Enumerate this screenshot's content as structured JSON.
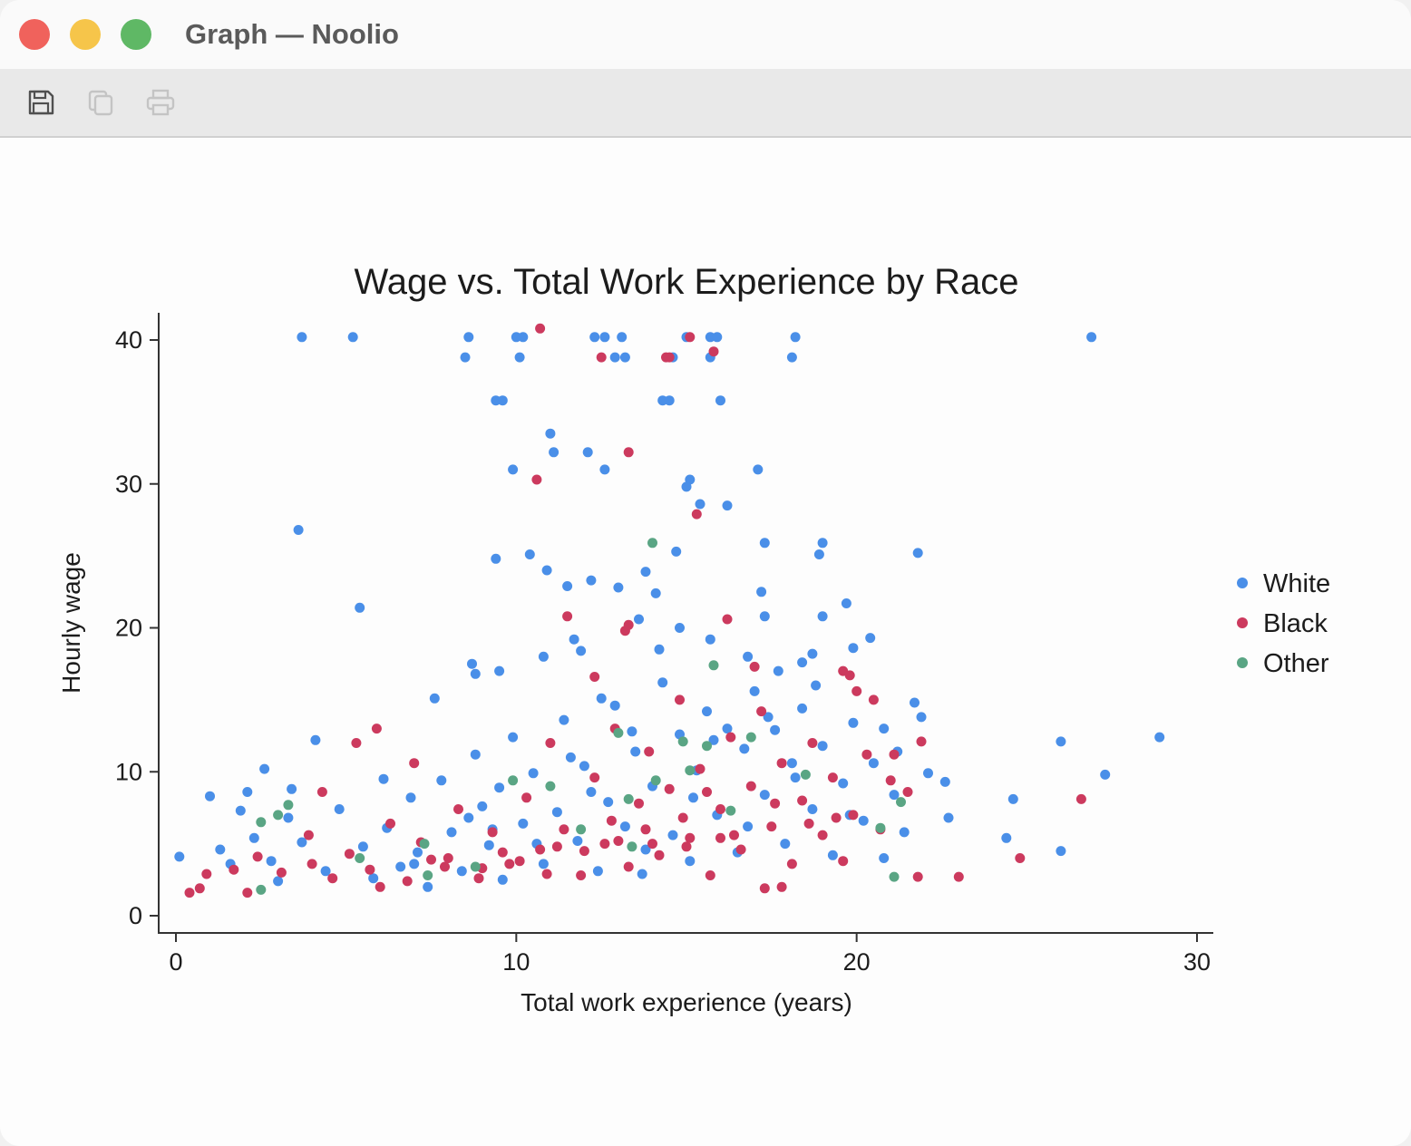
{
  "window": {
    "title": "Graph — Noolio",
    "toolbar": [
      {
        "icon": "save-icon",
        "enabled": true
      },
      {
        "icon": "copy-icon",
        "enabled": false
      },
      {
        "icon": "print-icon",
        "enabled": false
      }
    ]
  },
  "chart_data": {
    "type": "scatter",
    "title": "Wage vs. Total Work Experience by Race",
    "xlabel": "Total work experience (years)",
    "ylabel": "Hourly wage",
    "xlim": [
      0,
      30
    ],
    "ylim": [
      0,
      40
    ],
    "x_ticks": [
      0,
      10,
      20,
      30
    ],
    "y_ticks": [
      0,
      10,
      20,
      30,
      40
    ],
    "grid": false,
    "legend_position": "right",
    "series": [
      {
        "name": "White",
        "color": "#4a8fe8",
        "points": [
          [
            0.1,
            4.1
          ],
          [
            1.0,
            8.3
          ],
          [
            1.9,
            7.3
          ],
          [
            2.1,
            8.6
          ],
          [
            2.6,
            10.2
          ],
          [
            3.4,
            8.8
          ],
          [
            3.6,
            26.8
          ],
          [
            3.7,
            40.2
          ],
          [
            4.1,
            12.2
          ],
          [
            5.2,
            40.2
          ],
          [
            5.4,
            21.4
          ],
          [
            6.1,
            9.5
          ],
          [
            7.6,
            15.1
          ],
          [
            8.5,
            38.8
          ],
          [
            8.6,
            40.2
          ],
          [
            8.7,
            17.5
          ],
          [
            8.8,
            16.8
          ],
          [
            9.4,
            24.8
          ],
          [
            9.4,
            35.8
          ],
          [
            9.6,
            35.8
          ],
          [
            9.5,
            17.0
          ],
          [
            9.9,
            31.0
          ],
          [
            10.0,
            40.2
          ],
          [
            10.2,
            40.2
          ],
          [
            10.1,
            38.8
          ],
          [
            10.4,
            25.1
          ],
          [
            10.8,
            18.0
          ],
          [
            10.9,
            24.0
          ],
          [
            11.0,
            33.5
          ],
          [
            11.1,
            32.2
          ],
          [
            11.5,
            22.9
          ],
          [
            11.7,
            19.2
          ],
          [
            11.9,
            18.4
          ],
          [
            12.1,
            32.2
          ],
          [
            12.2,
            23.3
          ],
          [
            12.3,
            40.2
          ],
          [
            12.6,
            40.2
          ],
          [
            12.5,
            15.1
          ],
          [
            12.6,
            31.0
          ],
          [
            12.9,
            38.8
          ],
          [
            13.1,
            40.2
          ],
          [
            13.2,
            38.8
          ],
          [
            13.0,
            22.8
          ],
          [
            13.6,
            20.6
          ],
          [
            13.8,
            23.9
          ],
          [
            14.1,
            22.4
          ],
          [
            14.2,
            18.5
          ],
          [
            14.3,
            35.8
          ],
          [
            14.5,
            35.8
          ],
          [
            14.6,
            38.8
          ],
          [
            14.7,
            25.3
          ],
          [
            14.8,
            20.0
          ],
          [
            15.0,
            40.2
          ],
          [
            15.1,
            30.3
          ],
          [
            15.0,
            29.8
          ],
          [
            15.4,
            28.6
          ],
          [
            15.7,
            40.2
          ],
          [
            15.9,
            40.2
          ],
          [
            15.7,
            38.8
          ],
          [
            15.7,
            19.2
          ],
          [
            16.0,
            35.8
          ],
          [
            16.2,
            28.5
          ],
          [
            16.8,
            18.0
          ],
          [
            17.1,
            31.0
          ],
          [
            17.2,
            22.5
          ],
          [
            17.3,
            25.9
          ],
          [
            17.3,
            20.8
          ],
          [
            17.7,
            17.0
          ],
          [
            18.1,
            38.8
          ],
          [
            18.2,
            40.2
          ],
          [
            18.4,
            17.6
          ],
          [
            18.7,
            18.2
          ],
          [
            18.9,
            25.1
          ],
          [
            19.0,
            25.9
          ],
          [
            19.0,
            20.8
          ],
          [
            19.7,
            21.7
          ],
          [
            19.9,
            18.6
          ],
          [
            20.4,
            19.3
          ],
          [
            20.8,
            13.0
          ],
          [
            21.2,
            11.4
          ],
          [
            21.7,
            14.8
          ],
          [
            21.8,
            25.2
          ],
          [
            21.9,
            13.8
          ],
          [
            22.1,
            9.9
          ],
          [
            22.6,
            9.3
          ],
          [
            22.7,
            6.8
          ],
          [
            24.4,
            5.4
          ],
          [
            24.6,
            8.1
          ],
          [
            26.0,
            12.1
          ],
          [
            26.0,
            4.5
          ],
          [
            26.9,
            40.2
          ],
          [
            27.3,
            9.8
          ],
          [
            28.9,
            12.4
          ],
          [
            1.3,
            4.6
          ],
          [
            1.6,
            3.6
          ],
          [
            2.3,
            5.4
          ],
          [
            2.8,
            3.8
          ],
          [
            3.0,
            2.4
          ],
          [
            3.3,
            6.8
          ],
          [
            3.7,
            5.1
          ],
          [
            4.4,
            3.1
          ],
          [
            4.8,
            7.4
          ],
          [
            5.5,
            4.8
          ],
          [
            5.8,
            2.6
          ],
          [
            6.2,
            6.1
          ],
          [
            6.6,
            3.4
          ],
          [
            6.9,
            8.2
          ],
          [
            7.1,
            4.4
          ],
          [
            7.4,
            2.0
          ],
          [
            7.8,
            9.4
          ],
          [
            8.1,
            5.8
          ],
          [
            8.4,
            3.1
          ],
          [
            8.8,
            11.2
          ],
          [
            9.0,
            7.6
          ],
          [
            9.2,
            4.9
          ],
          [
            9.5,
            8.9
          ],
          [
            9.6,
            2.5
          ],
          [
            9.9,
            12.4
          ],
          [
            10.2,
            6.4
          ],
          [
            10.5,
            9.9
          ],
          [
            10.8,
            3.6
          ],
          [
            11.2,
            7.2
          ],
          [
            11.4,
            13.6
          ],
          [
            11.8,
            5.2
          ],
          [
            12.0,
            10.4
          ],
          [
            12.4,
            3.1
          ],
          [
            12.7,
            7.9
          ],
          [
            12.9,
            14.6
          ],
          [
            13.2,
            6.2
          ],
          [
            13.5,
            11.4
          ],
          [
            13.7,
            2.9
          ],
          [
            14.0,
            9.0
          ],
          [
            14.3,
            16.2
          ],
          [
            14.6,
            5.6
          ],
          [
            14.8,
            12.6
          ],
          [
            15.1,
            3.8
          ],
          [
            15.3,
            10.1
          ],
          [
            15.6,
            14.2
          ],
          [
            15.9,
            7.0
          ],
          [
            16.2,
            13.0
          ],
          [
            16.5,
            4.4
          ],
          [
            16.7,
            11.6
          ],
          [
            17.0,
            15.6
          ],
          [
            17.3,
            8.4
          ],
          [
            17.6,
            12.9
          ],
          [
            17.9,
            5.0
          ],
          [
            18.1,
            10.6
          ],
          [
            18.4,
            14.4
          ],
          [
            18.7,
            7.4
          ],
          [
            19.0,
            11.8
          ],
          [
            19.3,
            4.2
          ],
          [
            19.6,
            9.2
          ],
          [
            19.9,
            13.4
          ],
          [
            20.2,
            6.6
          ],
          [
            20.5,
            10.6
          ],
          [
            20.8,
            4.0
          ],
          [
            21.1,
            8.4
          ],
          [
            21.4,
            5.8
          ],
          [
            7.0,
            3.6
          ],
          [
            8.6,
            6.8
          ],
          [
            10.6,
            5.0
          ],
          [
            12.2,
            8.6
          ],
          [
            13.8,
            4.6
          ],
          [
            15.2,
            8.2
          ],
          [
            16.8,
            6.2
          ],
          [
            18.2,
            9.6
          ],
          [
            19.8,
            7.0
          ],
          [
            9.3,
            6.0
          ],
          [
            11.6,
            11.0
          ],
          [
            13.4,
            12.8
          ],
          [
            15.8,
            12.2
          ],
          [
            17.4,
            13.8
          ],
          [
            18.8,
            16.0
          ]
        ]
      },
      {
        "name": "Black",
        "color": "#cc3a5e",
        "points": [
          [
            0.4,
            1.6
          ],
          [
            0.7,
            1.9
          ],
          [
            0.9,
            2.9
          ],
          [
            2.1,
            1.6
          ],
          [
            4.3,
            8.6
          ],
          [
            5.3,
            12.0
          ],
          [
            5.9,
            13.0
          ],
          [
            7.0,
            10.6
          ],
          [
            10.6,
            30.3
          ],
          [
            10.7,
            40.8
          ],
          [
            11.5,
            20.8
          ],
          [
            12.3,
            16.6
          ],
          [
            12.5,
            38.8
          ],
          [
            13.2,
            19.8
          ],
          [
            13.3,
            20.2
          ],
          [
            13.3,
            32.2
          ],
          [
            14.4,
            38.8
          ],
          [
            14.5,
            38.8
          ],
          [
            15.1,
            40.2
          ],
          [
            15.3,
            27.9
          ],
          [
            15.8,
            39.2
          ],
          [
            16.2,
            20.6
          ],
          [
            17.0,
            17.3
          ],
          [
            19.6,
            17.0
          ],
          [
            19.8,
            16.7
          ],
          [
            20.0,
            15.6
          ],
          [
            20.5,
            15.0
          ],
          [
            21.1,
            11.2
          ],
          [
            21.5,
            8.6
          ],
          [
            21.9,
            12.1
          ],
          [
            21.8,
            2.7
          ],
          [
            23.0,
            2.7
          ],
          [
            24.8,
            4.0
          ],
          [
            26.6,
            8.1
          ],
          [
            17.3,
            1.9
          ],
          [
            17.8,
            2.0
          ],
          [
            12.0,
            4.5
          ],
          [
            1.7,
            3.2
          ],
          [
            2.4,
            4.1
          ],
          [
            3.1,
            3.0
          ],
          [
            3.9,
            5.6
          ],
          [
            4.6,
            2.6
          ],
          [
            5.1,
            4.3
          ],
          [
            5.7,
            3.2
          ],
          [
            6.3,
            6.4
          ],
          [
            6.8,
            2.4
          ],
          [
            7.2,
            5.1
          ],
          [
            7.9,
            3.4
          ],
          [
            8.3,
            7.4
          ],
          [
            8.9,
            2.6
          ],
          [
            9.3,
            5.8
          ],
          [
            9.8,
            3.6
          ],
          [
            10.3,
            8.2
          ],
          [
            10.7,
            4.6
          ],
          [
            11.0,
            12.0
          ],
          [
            11.4,
            6.0
          ],
          [
            11.9,
            2.8
          ],
          [
            12.3,
            9.6
          ],
          [
            12.6,
            5.0
          ],
          [
            12.9,
            13.0
          ],
          [
            13.3,
            3.4
          ],
          [
            13.6,
            7.8
          ],
          [
            13.9,
            11.4
          ],
          [
            14.2,
            4.2
          ],
          [
            14.5,
            8.8
          ],
          [
            14.8,
            15.0
          ],
          [
            15.1,
            5.4
          ],
          [
            15.4,
            10.2
          ],
          [
            15.7,
            2.8
          ],
          [
            16.0,
            7.4
          ],
          [
            16.3,
            12.4
          ],
          [
            16.6,
            4.6
          ],
          [
            16.9,
            9.0
          ],
          [
            17.2,
            14.2
          ],
          [
            17.5,
            6.2
          ],
          [
            17.8,
            10.6
          ],
          [
            18.1,
            3.6
          ],
          [
            18.4,
            8.0
          ],
          [
            18.7,
            12.0
          ],
          [
            19.0,
            5.6
          ],
          [
            19.3,
            9.6
          ],
          [
            19.6,
            3.8
          ],
          [
            19.9,
            7.0
          ],
          [
            20.3,
            11.2
          ],
          [
            20.7,
            6.0
          ],
          [
            21.0,
            9.4
          ],
          [
            6.0,
            2.0
          ],
          [
            8.0,
            4.0
          ],
          [
            9.6,
            4.4
          ],
          [
            10.1,
            3.8
          ],
          [
            11.2,
            4.8
          ],
          [
            12.8,
            6.6
          ],
          [
            13.8,
            6.0
          ],
          [
            14.9,
            6.8
          ],
          [
            15.6,
            8.6
          ],
          [
            16.4,
            5.6
          ],
          [
            17.6,
            7.8
          ],
          [
            18.6,
            6.4
          ],
          [
            19.4,
            6.8
          ],
          [
            13.0,
            5.2
          ],
          [
            14.0,
            5.0
          ],
          [
            15.0,
            4.8
          ],
          [
            16.0,
            5.4
          ],
          [
            10.9,
            2.9
          ],
          [
            9.0,
            3.3
          ],
          [
            7.5,
            3.9
          ],
          [
            4.0,
            3.6
          ]
        ]
      },
      {
        "name": "Other",
        "color": "#5aa584",
        "points": [
          [
            2.5,
            6.5
          ],
          [
            2.5,
            1.8
          ],
          [
            3.0,
            7.0
          ],
          [
            3.3,
            7.7
          ],
          [
            7.4,
            2.8
          ],
          [
            7.3,
            5.0
          ],
          [
            8.8,
            3.4
          ],
          [
            11.9,
            6.0
          ],
          [
            13.0,
            12.7
          ],
          [
            13.3,
            8.1
          ],
          [
            13.4,
            4.8
          ],
          [
            14.0,
            25.9
          ],
          [
            14.1,
            9.4
          ],
          [
            14.9,
            12.1
          ],
          [
            15.1,
            10.1
          ],
          [
            15.6,
            11.8
          ],
          [
            15.8,
            17.4
          ],
          [
            16.3,
            7.3
          ],
          [
            16.9,
            12.4
          ],
          [
            18.5,
            9.8
          ],
          [
            20.7,
            6.1
          ],
          [
            21.1,
            2.7
          ],
          [
            21.3,
            7.9
          ],
          [
            5.4,
            4.0
          ],
          [
            9.9,
            9.4
          ],
          [
            11.0,
            9.0
          ]
        ]
      }
    ]
  }
}
